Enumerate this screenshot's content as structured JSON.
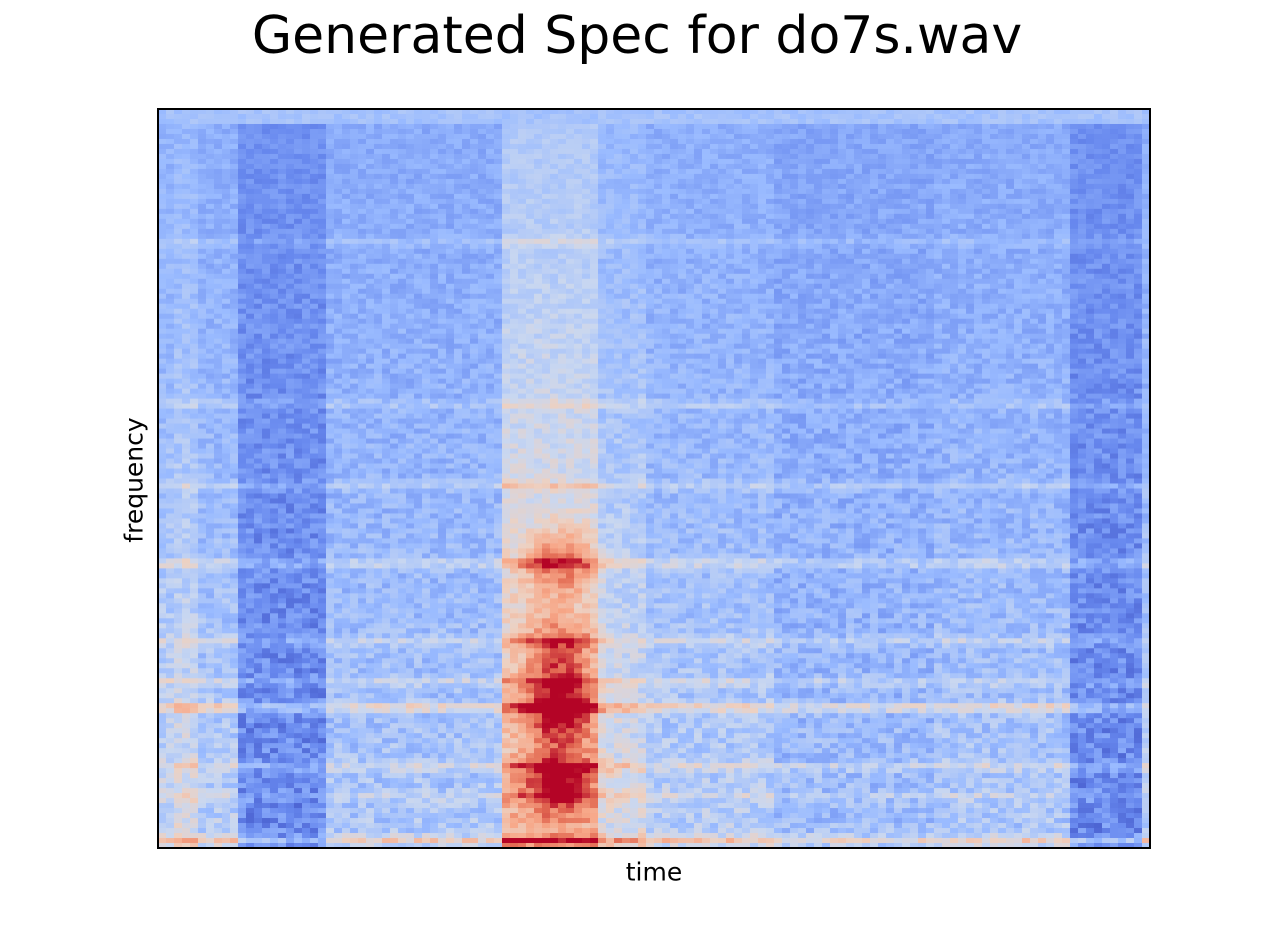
{
  "chart_data": {
    "type": "heatmap",
    "title": "Generated Spec for do7s.wav",
    "xlabel": "time",
    "ylabel": "frequency",
    "x_ticks": [],
    "y_ticks": [],
    "colormap": "coolwarm",
    "colormap_stops": [
      "#3b4cc0",
      "#6788ee",
      "#9abbff",
      "#c9d7f0",
      "#edd1c2",
      "#f7a889",
      "#e26952",
      "#b40426"
    ],
    "time_segments": [
      {
        "t": [
          0.0,
          0.02
        ],
        "intensity": 0.4
      },
      {
        "t": [
          0.02,
          0.04
        ],
        "intensity": 0.45
      },
      {
        "t": [
          0.04,
          0.08
        ],
        "intensity": 0.35
      },
      {
        "t": [
          0.08,
          0.17
        ],
        "intensity": 0.12
      },
      {
        "t": [
          0.17,
          0.35
        ],
        "intensity": 0.32
      },
      {
        "t": [
          0.35,
          0.44
        ],
        "intensity": 0.65
      },
      {
        "t": [
          0.44,
          0.49
        ],
        "intensity": 0.45
      },
      {
        "t": [
          0.49,
          0.62
        ],
        "intensity": 0.35
      },
      {
        "t": [
          0.62,
          0.78
        ],
        "intensity": 0.28
      },
      {
        "t": [
          0.78,
          0.92
        ],
        "intensity": 0.32
      },
      {
        "t": [
          0.92,
          0.99
        ],
        "intensity": 0.12
      },
      {
        "t": [
          0.99,
          1.0
        ],
        "intensity": 0.35
      }
    ],
    "harmonic_bands": [
      {
        "freq": 0.01,
        "strength": 0.7
      },
      {
        "freq": 0.07,
        "strength": 0.25
      },
      {
        "freq": 0.11,
        "strength": 0.4
      },
      {
        "freq": 0.19,
        "strength": 0.75
      },
      {
        "freq": 0.225,
        "strength": 0.35
      },
      {
        "freq": 0.28,
        "strength": 0.35
      },
      {
        "freq": 0.385,
        "strength": 0.45
      },
      {
        "freq": 0.49,
        "strength": 0.3
      },
      {
        "freq": 0.6,
        "strength": 0.25
      },
      {
        "freq": 0.82,
        "strength": 0.2
      }
    ],
    "hot_spots": [
      {
        "t": 0.405,
        "freq": 0.19,
        "level": 1.0
      },
      {
        "t": 0.405,
        "freq": 0.09,
        "level": 0.85
      },
      {
        "t": 0.405,
        "freq": 0.385,
        "level": 0.7
      },
      {
        "t": 0.405,
        "freq": 0.27,
        "level": 0.65
      }
    ]
  }
}
